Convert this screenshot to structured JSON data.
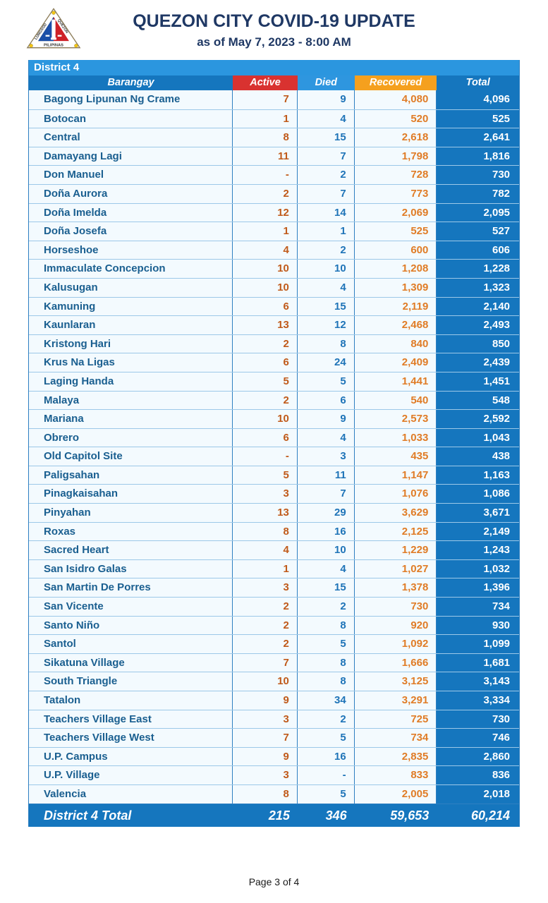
{
  "header": {
    "title": "QUEZON CITY COVID-19 UPDATE",
    "subtitle": "as of May 7, 2023 - 8:00 AM",
    "logo": {
      "icon": "quezon-city-seal-icon",
      "banner_text": "PILIPINAS",
      "arc_left": "LUNGSOD",
      "arc_right": "QUEZON"
    }
  },
  "colors": {
    "title_navy": "#1F3864",
    "district_bar_blue": "#2B96DF",
    "header_blue": "#1576BE",
    "active_red": "#D93230",
    "died_blue": "#2E96DF",
    "recovered_orange": "#F5A01E",
    "row_bg": "#F3FAFE",
    "active_num": "#C05A1A",
    "died_num": "#1F74B8",
    "recovered_num": "#E07C26",
    "name_text": "#1A5F90"
  },
  "table": {
    "district_label": "District 4",
    "columns": [
      "Barangay",
      "Active",
      "Died",
      "Recovered",
      "Total"
    ],
    "rows": [
      {
        "name": "Bagong Lipunan Ng Crame",
        "active": "7",
        "died": "9",
        "recovered": "4,080",
        "total": "4,096"
      },
      {
        "name": "Botocan",
        "active": "1",
        "died": "4",
        "recovered": "520",
        "total": "525"
      },
      {
        "name": "Central",
        "active": "8",
        "died": "15",
        "recovered": "2,618",
        "total": "2,641"
      },
      {
        "name": "Damayang Lagi",
        "active": "11",
        "died": "7",
        "recovered": "1,798",
        "total": "1,816"
      },
      {
        "name": "Don Manuel",
        "active": "-",
        "died": "2",
        "recovered": "728",
        "total": "730"
      },
      {
        "name": "Doña Aurora",
        "active": "2",
        "died": "7",
        "recovered": "773",
        "total": "782"
      },
      {
        "name": "Doña Imelda",
        "active": "12",
        "died": "14",
        "recovered": "2,069",
        "total": "2,095"
      },
      {
        "name": "Doña Josefa",
        "active": "1",
        "died": "1",
        "recovered": "525",
        "total": "527"
      },
      {
        "name": "Horseshoe",
        "active": "4",
        "died": "2",
        "recovered": "600",
        "total": "606"
      },
      {
        "name": "Immaculate Concepcion",
        "active": "10",
        "died": "10",
        "recovered": "1,208",
        "total": "1,228"
      },
      {
        "name": "Kalusugan",
        "active": "10",
        "died": "4",
        "recovered": "1,309",
        "total": "1,323"
      },
      {
        "name": "Kamuning",
        "active": "6",
        "died": "15",
        "recovered": "2,119",
        "total": "2,140"
      },
      {
        "name": "Kaunlaran",
        "active": "13",
        "died": "12",
        "recovered": "2,468",
        "total": "2,493"
      },
      {
        "name": "Kristong Hari",
        "active": "2",
        "died": "8",
        "recovered": "840",
        "total": "850"
      },
      {
        "name": "Krus Na Ligas",
        "active": "6",
        "died": "24",
        "recovered": "2,409",
        "total": "2,439"
      },
      {
        "name": "Laging Handa",
        "active": "5",
        "died": "5",
        "recovered": "1,441",
        "total": "1,451"
      },
      {
        "name": "Malaya",
        "active": "2",
        "died": "6",
        "recovered": "540",
        "total": "548"
      },
      {
        "name": "Mariana",
        "active": "10",
        "died": "9",
        "recovered": "2,573",
        "total": "2,592"
      },
      {
        "name": "Obrero",
        "active": "6",
        "died": "4",
        "recovered": "1,033",
        "total": "1,043"
      },
      {
        "name": "Old Capitol Site",
        "active": "-",
        "died": "3",
        "recovered": "435",
        "total": "438"
      },
      {
        "name": "Paligsahan",
        "active": "5",
        "died": "11",
        "recovered": "1,147",
        "total": "1,163"
      },
      {
        "name": "Pinagkaisahan",
        "active": "3",
        "died": "7",
        "recovered": "1,076",
        "total": "1,086"
      },
      {
        "name": "Pinyahan",
        "active": "13",
        "died": "29",
        "recovered": "3,629",
        "total": "3,671"
      },
      {
        "name": "Roxas",
        "active": "8",
        "died": "16",
        "recovered": "2,125",
        "total": "2,149"
      },
      {
        "name": "Sacred Heart",
        "active": "4",
        "died": "10",
        "recovered": "1,229",
        "total": "1,243"
      },
      {
        "name": "San Isidro Galas",
        "active": "1",
        "died": "4",
        "recovered": "1,027",
        "total": "1,032"
      },
      {
        "name": "San Martin De Porres",
        "active": "3",
        "died": "15",
        "recovered": "1,378",
        "total": "1,396"
      },
      {
        "name": "San Vicente",
        "active": "2",
        "died": "2",
        "recovered": "730",
        "total": "734"
      },
      {
        "name": "Santo Niño",
        "active": "2",
        "died": "8",
        "recovered": "920",
        "total": "930"
      },
      {
        "name": "Santol",
        "active": "2",
        "died": "5",
        "recovered": "1,092",
        "total": "1,099"
      },
      {
        "name": "Sikatuna Village",
        "active": "7",
        "died": "8",
        "recovered": "1,666",
        "total": "1,681"
      },
      {
        "name": "South Triangle",
        "active": "10",
        "died": "8",
        "recovered": "3,125",
        "total": "3,143"
      },
      {
        "name": "Tatalon",
        "active": "9",
        "died": "34",
        "recovered": "3,291",
        "total": "3,334"
      },
      {
        "name": "Teachers Village East",
        "active": "3",
        "died": "2",
        "recovered": "725",
        "total": "730"
      },
      {
        "name": "Teachers Village West",
        "active": "7",
        "died": "5",
        "recovered": "734",
        "total": "746"
      },
      {
        "name": "U.P. Campus",
        "active": "9",
        "died": "16",
        "recovered": "2,835",
        "total": "2,860"
      },
      {
        "name": "U.P. Village",
        "active": "3",
        "died": "-",
        "recovered": "833",
        "total": "836"
      },
      {
        "name": "Valencia",
        "active": "8",
        "died": "5",
        "recovered": "2,005",
        "total": "2,018"
      }
    ],
    "total_row": {
      "label": "District 4 Total",
      "active": "215",
      "died": "346",
      "recovered": "59,653",
      "total": "60,214"
    }
  },
  "footer": {
    "page_label": "Page 3 of 4"
  }
}
